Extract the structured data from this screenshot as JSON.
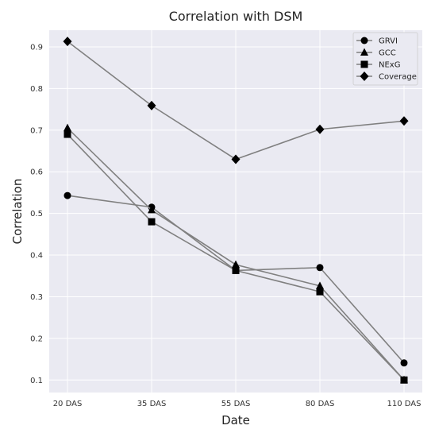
{
  "chart_data": {
    "type": "line",
    "title": "Correlation with DSM",
    "xlabel": "Date",
    "ylabel": "Correlation",
    "categories": [
      "20 DAS",
      "35 DAS",
      "55 DAS",
      "80 DAS",
      "110 DAS"
    ],
    "ylim": [
      0.07,
      0.94
    ],
    "yticks": [
      0.1,
      0.2,
      0.3,
      0.4,
      0.5,
      0.6,
      0.7,
      0.8,
      0.9
    ],
    "grid": true,
    "legend_position": "top-right",
    "colors": {
      "plot_bg": "#eaeaf2",
      "grid": "#ffffff",
      "line": "#808080",
      "marker": "#000000"
    },
    "series": [
      {
        "name": "GRVI",
        "marker": "circle",
        "values": [
          0.543,
          0.515,
          0.363,
          0.37,
          0.141
        ]
      },
      {
        "name": "GCC",
        "marker": "triangle",
        "values": [
          0.705,
          0.508,
          0.377,
          0.326,
          0.1
        ]
      },
      {
        "name": "NExG",
        "marker": "square",
        "values": [
          0.69,
          0.48,
          0.363,
          0.312,
          0.1
        ]
      },
      {
        "name": "Coverage",
        "marker": "diamond",
        "values": [
          0.913,
          0.759,
          0.63,
          0.702,
          0.722
        ]
      }
    ]
  }
}
